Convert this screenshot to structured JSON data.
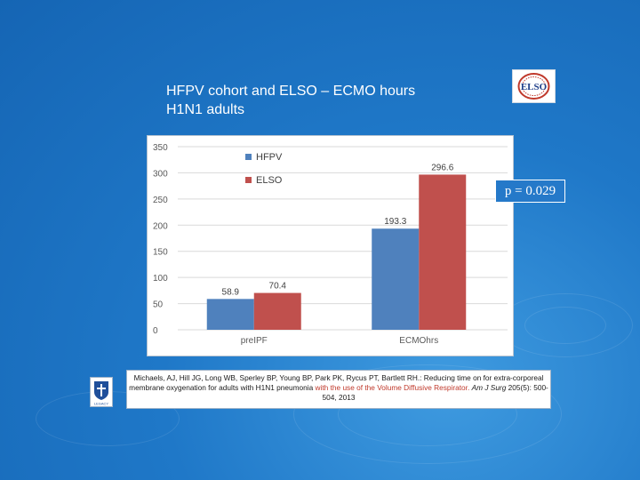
{
  "slide": {
    "title_line1": "HFPV cohort and ELSO – ECMO hours",
    "title_line2": "H1N1 adults",
    "p_value": "p = 0.029",
    "logo_text": "ELSO",
    "left_logo_text": "LEGACY"
  },
  "citation": {
    "part1": "Michaels, AJ, Hill JG, Long WB, Sperley BP, Young BP, Park PK, Rycus PT, Bartlett RH.: Reducing time on for extra-corporeal membrane oxygenation for adults with H1N1 pneumonia",
    "part2": "with the use of the Volume Diffusive Respirator.",
    "journal": "Am J Surg",
    "part3": "205(5): 500-504, 2013"
  },
  "colors": {
    "HFPV": "#4f81bd",
    "ELSO": "#c0504d",
    "background": "#1f78c8"
  },
  "chart_data": {
    "type": "bar",
    "categories": [
      "preIPF",
      "ECMOhrs"
    ],
    "series": [
      {
        "name": "HFPV",
        "values": [
          58.9,
          193.3
        ]
      },
      {
        "name": "ELSO",
        "values": [
          70.4,
          296.6
        ]
      }
    ],
    "data_labels": [
      [
        "58.9",
        "193.3"
      ],
      [
        "70.4",
        "296.6"
      ]
    ],
    "ylim": [
      0,
      350
    ],
    "yticks": [
      0,
      50,
      100,
      150,
      200,
      250,
      300,
      350
    ],
    "ytick_labels": [
      "0",
      "50",
      "100",
      "150",
      "200",
      "250",
      "300",
      "350"
    ],
    "legend_position": "top-left",
    "grid": true
  }
}
